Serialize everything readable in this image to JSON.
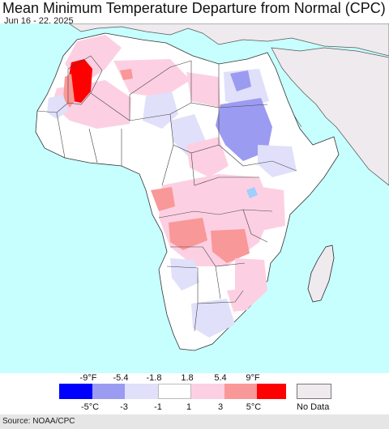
{
  "header": {
    "title": "Mean Minimum Temperature Departure from Normal (CPC)",
    "date_range": "Jun 16 - 22, 2025"
  },
  "legend": {
    "fahrenheit_labels": [
      "-9°F",
      "-5.4",
      "-1.8",
      "1.8",
      "5.4",
      "9°F"
    ],
    "celsius_labels": [
      "-5°C",
      "-3",
      "-1",
      "1",
      "3",
      "5°C"
    ],
    "colors": [
      "#0000ff",
      "#9b9bf2",
      "#e0e0fa",
      "#ffffff",
      "#fcd0e2",
      "#f99898",
      "#ff0000"
    ],
    "no_data_label": "No Data",
    "no_data_color": "#eeeaee"
  },
  "map": {
    "ocean_color": "#c7ffff",
    "no_data_region_color": "#eeeaee",
    "land_color": "#ffffff"
  },
  "footer": {
    "source": "Source: NOAA/CPC"
  }
}
